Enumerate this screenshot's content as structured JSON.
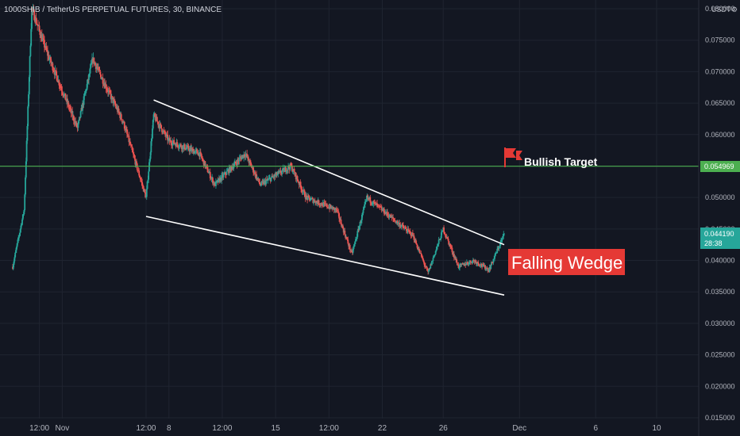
{
  "title": "1000SHIB / TetherUS PERPETUAL FUTURES, 30, BINANCE",
  "currency": "USDT",
  "colors": {
    "background": "#131722",
    "up": "#26a69a",
    "down": "#ef5350",
    "target_line": "#4caf50",
    "price_badge": "#26a69a",
    "wedge_lines": "#ffffff",
    "annotation_box": "#e53935"
  },
  "chart_data": {
    "type": "candlestick",
    "y_axis": {
      "ticks": [
        "0.080000",
        "0.075000",
        "0.070000",
        "0.065000",
        "0.060000",
        "0.055000",
        "0.050000",
        "0.045000",
        "0.040000",
        "0.035000",
        "0.030000",
        "0.025000",
        "0.020000",
        "0.015000"
      ],
      "range": [
        0.015,
        0.081
      ]
    },
    "x_axis": {
      "ticks": [
        "12:00",
        "Nov",
        "12:00",
        "8",
        "12:00",
        "15",
        "12:00",
        "22",
        "26",
        "Dec",
        "6",
        "10"
      ]
    },
    "price_path": [
      [
        "Oct 28 18:00",
        0.039
      ],
      [
        "Oct 29 12:00",
        0.048
      ],
      [
        "Oct 30",
        0.08
      ],
      [
        "Oct 31",
        0.073
      ],
      [
        "Nov 2",
        0.061
      ],
      [
        "Nov 3",
        0.072
      ],
      [
        "Nov 5",
        0.062
      ],
      [
        "Nov 6 12:00",
        0.05
      ],
      [
        "Nov 7",
        0.063
      ],
      [
        "Nov 8",
        0.059
      ],
      [
        "Nov 10",
        0.057
      ],
      [
        "Nov 11",
        0.052
      ],
      [
        "Nov 13",
        0.057
      ],
      [
        "Nov 14",
        0.052
      ],
      [
        "Nov 16",
        0.055
      ],
      [
        "Nov 17",
        0.05
      ],
      [
        "Nov 19",
        0.048
      ],
      [
        "Nov 20",
        0.041
      ],
      [
        "Nov 21",
        0.05
      ],
      [
        "Nov 23",
        0.046
      ],
      [
        "Nov 24",
        0.044
      ],
      [
        "Nov 25",
        0.038
      ],
      [
        "Nov 26",
        0.045
      ],
      [
        "Nov 27",
        0.039
      ],
      [
        "Nov 28",
        0.04
      ],
      [
        "Nov 29",
        0.0385
      ],
      [
        "Nov 30",
        0.04419
      ]
    ],
    "current_price": "0.044190",
    "countdown": "28:38",
    "target_price": "0.054969",
    "wedge_upper": [
      [
        "Nov 7",
        0.0655
      ],
      [
        "Nov 30",
        0.0425
      ]
    ],
    "wedge_lower": [
      [
        "Nov 6 12:00",
        0.047
      ],
      [
        "Nov 30",
        0.0345
      ]
    ],
    "annotations": {
      "target": "Bullish Target",
      "pattern": "Falling Wedge"
    }
  }
}
